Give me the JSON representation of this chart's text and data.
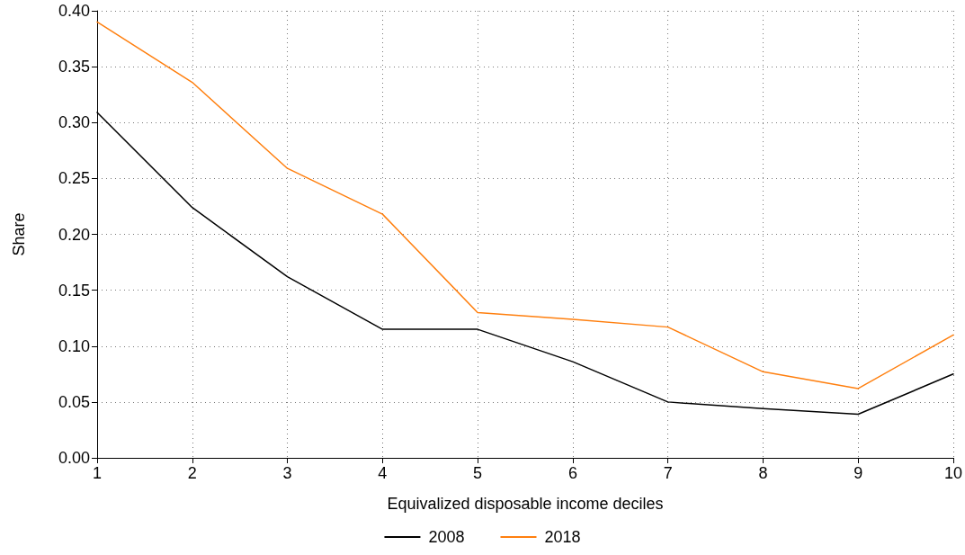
{
  "chart_data": {
    "type": "line",
    "xlabel": "Equivalized disposable income deciles",
    "ylabel": "Share",
    "x": [
      1,
      2,
      3,
      4,
      5,
      6,
      7,
      8,
      9,
      10
    ],
    "series": [
      {
        "name": "2008",
        "color": "#000000",
        "values": [
          0.309,
          0.224,
          0.162,
          0.115,
          0.115,
          0.086,
          0.05,
          0.044,
          0.039,
          0.075
        ]
      },
      {
        "name": "2018",
        "color": "#ff7f0e",
        "values": [
          0.39,
          0.336,
          0.259,
          0.218,
          0.13,
          0.124,
          0.117,
          0.077,
          0.062,
          0.11
        ]
      }
    ],
    "xlim": [
      1,
      10
    ],
    "xticks": [
      1,
      2,
      3,
      4,
      5,
      6,
      7,
      8,
      9,
      10
    ],
    "ylim": [
      0,
      0.4
    ],
    "yticks": [
      {
        "value": 0,
        "label": "0.00"
      },
      {
        "value": 0.05,
        "label": "0.05"
      },
      {
        "value": 0.1,
        "label": "0.10"
      },
      {
        "value": 0.15,
        "label": "0.15"
      },
      {
        "value": 0.2,
        "label": "0.20"
      },
      {
        "value": 0.25,
        "label": "0.25"
      },
      {
        "value": 0.3,
        "label": "0.30"
      },
      {
        "value": 0.35,
        "label": "0.35"
      },
      {
        "value": 0.4,
        "label": "0.40"
      }
    ],
    "grid": true,
    "legend": "bottom",
    "marker": "none",
    "line_style": "solid"
  }
}
